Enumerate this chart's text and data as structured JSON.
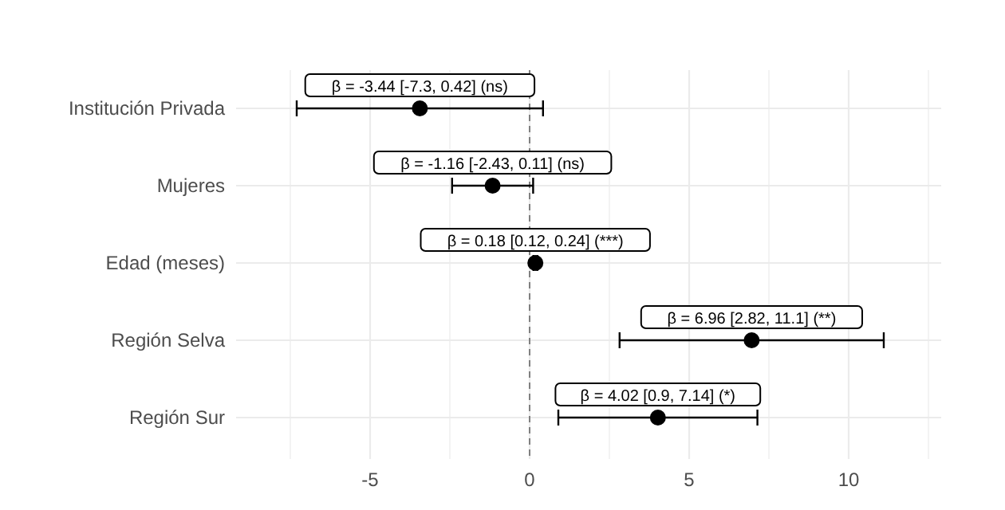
{
  "chart_data": {
    "type": "scatter",
    "orientation": "horizontal",
    "categories": [
      "Institución Privada",
      "Mujeres",
      "Edad (meses)",
      "Región Selva",
      "Región Sur"
    ],
    "values": [
      -3.44,
      -1.16,
      0.18,
      6.96,
      4.02
    ],
    "errors": [
      [
        -7.3,
        0.42
      ],
      [
        -2.43,
        0.11
      ],
      [
        0.12,
        0.24
      ],
      [
        2.82,
        11.1
      ],
      [
        0.9,
        7.14
      ]
    ],
    "color": "#000000",
    "marker": "circle",
    "grid": true,
    "xlim": [
      -9.2,
      12.9
    ],
    "xticks": [
      {
        "value": -7.5,
        "label": null
      },
      -5,
      {
        "value": -2.5,
        "label": null
      },
      0,
      {
        "value": 2.5,
        "label": null
      },
      5,
      {
        "value": 7.5,
        "label": null
      },
      10,
      {
        "value": 12.5,
        "label": null
      }
    ],
    "ref_lines": [
      {
        "axis": "x",
        "value": 0,
        "line_style": "dashed",
        "color": "#808080"
      }
    ],
    "annotations": [
      {
        "text": "β = -3.44 [-7.3, 0.42] (ns)",
        "x": -3.44,
        "y": "Institución Privada"
      },
      {
        "text": "β = -1.16 [-2.43, 0.11] (ns)",
        "x": -1.16,
        "y": "Mujeres"
      },
      {
        "text": "β = 0.18 [0.12, 0.24] (***)",
        "x": 0.18,
        "y": "Edad (meses)"
      },
      {
        "text": "β = 6.96 [2.82, 11.1] (**)",
        "x": 6.96,
        "y": "Región Selva"
      },
      {
        "text": "β = 4.02 [0.9, 7.14] (*)",
        "x": 4.02,
        "y": "Región Sur"
      }
    ]
  }
}
